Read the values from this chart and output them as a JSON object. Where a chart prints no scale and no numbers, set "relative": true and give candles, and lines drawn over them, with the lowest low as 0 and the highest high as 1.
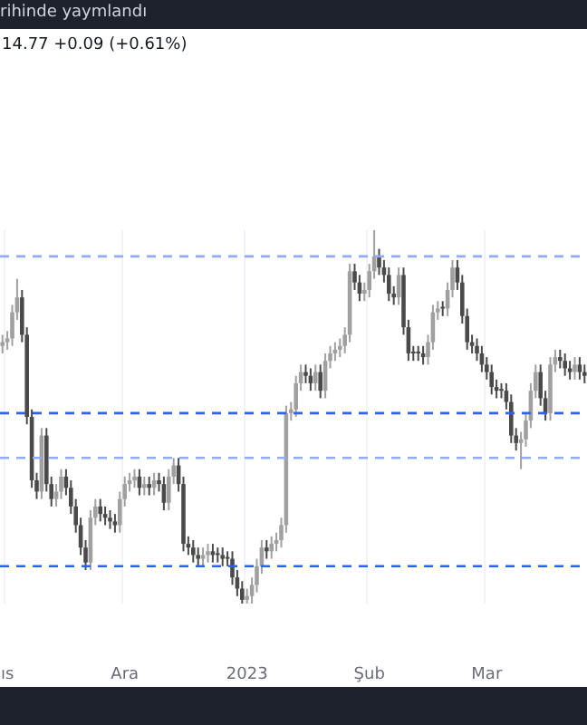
{
  "chart_data": {
    "type": "candlestick",
    "title": "rihinde yaymlandı",
    "subtitle": "14.77  +0.09 (+0.61%)",
    "relative": true,
    "grid": "x",
    "legend": false,
    "colors": [
      "#a0a0a0",
      "#a0a0a0",
      "#a0a0a0",
      "#a0a0a0",
      "#4a4a4a",
      "#4a4a4a",
      "#4a4a4a",
      "#4a4a4a",
      "#a0a0a0",
      "#4a4a4a",
      "#4a4a4a",
      "#a0a0a0",
      "#a0a0a0",
      "#4a4a4a",
      "#4a4a4a",
      "#4a4a4a",
      "#4a4a4a",
      "#4a4a4a",
      "#a0a0a0",
      "#a0a0a0",
      "#4a4a4a",
      "#4a4a4a",
      "#4a4a4a",
      "#4a4a4a",
      "#a0a0a0",
      "#a0a0a0",
      "#a0a0a0",
      "#a0a0a0",
      "#4a4a4a",
      "#a0a0a0",
      "#4a4a4a",
      "#a0a0a0",
      "#4a4a4a",
      "#4a4a4a",
      "#a0a0a0",
      "#a0a0a0",
      "#4a4a4a",
      "#4a4a4a",
      "#4a4a4a",
      "#4a4a4a",
      "#4a4a4a",
      "#a0a0a0",
      "#a0a0a0",
      "#4a4a4a",
      "#4a4a4a",
      "#4a4a4a",
      "#4a4a4a",
      "#4a4a4a",
      "#4a4a4a",
      "#4a4a4a",
      "#a0a0a0",
      "#a0a0a0",
      "#a0a0a0",
      "#a0a0a0",
      "#4a4a4a",
      "#a0a0a0",
      "#a0a0a0",
      "#a0a0a0",
      "#a0a0a0",
      "#a0a0a0",
      "#a0a0a0",
      "#a0a0a0",
      "#4a4a4a",
      "#4a4a4a",
      "#a0a0a0",
      "#4a4a4a",
      "#a0a0a0",
      "#a0a0a0",
      "#a0a0a0",
      "#a0a0a0",
      "#a0a0a0",
      "#a0a0a0",
      "#4a4a4a",
      "#4a4a4a",
      "#a0a0a0",
      "#a0a0a0",
      "#a0a0a0",
      "#4a4a4a",
      "#4a4a4a",
      "#4a4a4a",
      "#4a4a4a",
      "#a0a0a0",
      "#4a4a4a",
      "#4a4a4a",
      "#4a4a4a",
      "#4a4a4a",
      "#4a4a4a",
      "#a0a0a0",
      "#a0a0a0",
      "#a0a0a0",
      "#4a4a4a",
      "#a0a0a0",
      "#a0a0a0",
      "#4a4a4a",
      "#4a4a4a",
      "#4a4a4a",
      "#4a4a4a",
      "#4a4a4a",
      "#4a4a4a",
      "#4a4a4a",
      "#4a4a4a",
      "#4a4a4a",
      "#4a4a4a",
      "#4a4a4a",
      "#4a4a4a",
      "#4a4a4a",
      "#a0a0a0",
      "#a0a0a0",
      "#a0a0a0",
      "#a0a0a0",
      "#4a4a4a",
      "#4a4a4a",
      "#a0a0a0",
      "#a0a0a0",
      "#4a4a4a",
      "#4a4a4a",
      "#4a4a4a",
      "#a0a0a0",
      "#4a4a4a",
      "#4a4a4a"
    ],
    "categories": [
      null,
      "ıs",
      null,
      null,
      null,
      null,
      null,
      null,
      null,
      null,
      null,
      null,
      null,
      null,
      null,
      null,
      null,
      null,
      null,
      null,
      null,
      null,
      null,
      null,
      null,
      "Ara",
      null,
      null,
      null,
      null,
      null,
      null,
      null,
      null,
      null,
      null,
      null,
      null,
      null,
      null,
      null,
      null,
      null,
      null,
      null,
      null,
      null,
      null,
      null,
      null,
      "2023",
      null,
      null,
      null,
      null,
      null,
      null,
      null,
      null,
      null,
      null,
      null,
      null,
      null,
      null,
      null,
      null,
      null,
      null,
      null,
      null,
      null,
      null,
      null,
      null,
      "Şub",
      null,
      null,
      null,
      null,
      null,
      null,
      null,
      null,
      null,
      null,
      null,
      null,
      null,
      null,
      null,
      null,
      null,
      null,
      null,
      null,
      null,
      null,
      null,
      "Mar",
      null,
      null,
      null,
      null,
      null,
      null,
      null,
      null,
      null,
      null,
      null,
      null,
      null,
      null,
      null,
      null,
      null,
      null,
      null,
      null
    ],
    "ohlc": [
      [
        0.69,
        0.72,
        0.67,
        0.7
      ],
      [
        0.7,
        0.73,
        0.68,
        0.71
      ],
      [
        0.71,
        0.8,
        0.69,
        0.78
      ],
      [
        0.78,
        0.87,
        0.76,
        0.82
      ],
      [
        0.82,
        0.84,
        0.7,
        0.72
      ],
      [
        0.72,
        0.74,
        0.48,
        0.5
      ],
      [
        0.5,
        0.52,
        0.31,
        0.33
      ],
      [
        0.33,
        0.35,
        0.28,
        0.3
      ],
      [
        0.3,
        0.47,
        0.28,
        0.45
      ],
      [
        0.45,
        0.47,
        0.3,
        0.32
      ],
      [
        0.32,
        0.34,
        0.26,
        0.28
      ],
      [
        0.28,
        0.32,
        0.26,
        0.3
      ],
      [
        0.3,
        0.36,
        0.28,
        0.34
      ],
      [
        0.34,
        0.36,
        0.29,
        0.31
      ],
      [
        0.31,
        0.33,
        0.24,
        0.26
      ],
      [
        0.26,
        0.28,
        0.19,
        0.21
      ],
      [
        0.21,
        0.23,
        0.13,
        0.15
      ],
      [
        0.15,
        0.17,
        0.09,
        0.11
      ],
      [
        0.11,
        0.25,
        0.09,
        0.23
      ],
      [
        0.23,
        0.28,
        0.21,
        0.26
      ],
      [
        0.26,
        0.28,
        0.22,
        0.24
      ],
      [
        0.24,
        0.26,
        0.21,
        0.23
      ],
      [
        0.23,
        0.25,
        0.2,
        0.22
      ],
      [
        0.22,
        0.24,
        0.19,
        0.21
      ],
      [
        0.21,
        0.3,
        0.19,
        0.28
      ],
      [
        0.28,
        0.34,
        0.26,
        0.32
      ],
      [
        0.32,
        0.35,
        0.3,
        0.33
      ],
      [
        0.33,
        0.36,
        0.31,
        0.34
      ],
      [
        0.34,
        0.36,
        0.29,
        0.31
      ],
      [
        0.31,
        0.34,
        0.29,
        0.32
      ],
      [
        0.32,
        0.34,
        0.29,
        0.31
      ],
      [
        0.31,
        0.35,
        0.29,
        0.33
      ],
      [
        0.33,
        0.35,
        0.3,
        0.32
      ],
      [
        0.32,
        0.34,
        0.25,
        0.27
      ],
      [
        0.27,
        0.36,
        0.25,
        0.34
      ],
      [
        0.34,
        0.39,
        0.32,
        0.37
      ],
      [
        0.37,
        0.39,
        0.3,
        0.32
      ],
      [
        0.32,
        0.34,
        0.14,
        0.16
      ],
      [
        0.16,
        0.18,
        0.13,
        0.15
      ],
      [
        0.15,
        0.17,
        0.11,
        0.13
      ],
      [
        0.13,
        0.15,
        0.1,
        0.12
      ],
      [
        0.12,
        0.15,
        0.1,
        0.13
      ],
      [
        0.13,
        0.16,
        0.11,
        0.14
      ],
      [
        0.14,
        0.16,
        0.11,
        0.13
      ],
      [
        0.13,
        0.15,
        0.11,
        0.13
      ],
      [
        0.13,
        0.15,
        0.1,
        0.12
      ],
      [
        0.12,
        0.14,
        0.1,
        0.12
      ],
      [
        0.12,
        0.14,
        0.05,
        0.07
      ],
      [
        0.07,
        0.09,
        0.02,
        0.04
      ],
      [
        0.04,
        0.06,
        0.0,
        0.01
      ],
      [
        0.01,
        0.04,
        0.0,
        0.02
      ],
      [
        0.02,
        0.07,
        0.0,
        0.05
      ],
      [
        0.05,
        0.12,
        0.03,
        0.1
      ],
      [
        0.1,
        0.17,
        0.08,
        0.15
      ],
      [
        0.15,
        0.17,
        0.12,
        0.14
      ],
      [
        0.14,
        0.18,
        0.12,
        0.16
      ],
      [
        0.16,
        0.19,
        0.14,
        0.17
      ],
      [
        0.17,
        0.23,
        0.15,
        0.21
      ],
      [
        0.21,
        0.53,
        0.19,
        0.51
      ],
      [
        0.51,
        0.54,
        0.49,
        0.52
      ],
      [
        0.52,
        0.61,
        0.5,
        0.59
      ],
      [
        0.59,
        0.64,
        0.57,
        0.62
      ],
      [
        0.62,
        0.64,
        0.59,
        0.61
      ],
      [
        0.61,
        0.63,
        0.57,
        0.59
      ],
      [
        0.59,
        0.64,
        0.57,
        0.62
      ],
      [
        0.62,
        0.64,
        0.55,
        0.57
      ],
      [
        0.57,
        0.67,
        0.55,
        0.65
      ],
      [
        0.65,
        0.69,
        0.63,
        0.67
      ],
      [
        0.67,
        0.7,
        0.65,
        0.68
      ],
      [
        0.68,
        0.71,
        0.66,
        0.69
      ],
      [
        0.69,
        0.74,
        0.67,
        0.72
      ],
      [
        0.72,
        0.91,
        0.7,
        0.89
      ],
      [
        0.89,
        0.91,
        0.84,
        0.86
      ],
      [
        0.86,
        0.88,
        0.81,
        0.83
      ],
      [
        0.83,
        0.86,
        0.81,
        0.84
      ],
      [
        0.84,
        0.91,
        0.82,
        0.89
      ],
      [
        0.89,
        1.0,
        0.87,
        0.93
      ],
      [
        0.93,
        0.95,
        0.88,
        0.9
      ],
      [
        0.9,
        0.92,
        0.86,
        0.88
      ],
      [
        0.88,
        0.9,
        0.81,
        0.83
      ],
      [
        0.83,
        0.85,
        0.8,
        0.82
      ],
      [
        0.82,
        0.9,
        0.8,
        0.88
      ],
      [
        0.88,
        0.9,
        0.72,
        0.74
      ],
      [
        0.74,
        0.76,
        0.65,
        0.67
      ],
      [
        0.67,
        0.69,
        0.65,
        0.67
      ],
      [
        0.67,
        0.69,
        0.65,
        0.67
      ],
      [
        0.67,
        0.69,
        0.64,
        0.66
      ],
      [
        0.66,
        0.72,
        0.64,
        0.7
      ],
      [
        0.7,
        0.8,
        0.68,
        0.78
      ],
      [
        0.78,
        0.81,
        0.76,
        0.79
      ],
      [
        0.79,
        0.81,
        0.77,
        0.79
      ],
      [
        0.79,
        0.86,
        0.77,
        0.84
      ],
      [
        0.84,
        0.92,
        0.82,
        0.9
      ],
      [
        0.9,
        0.92,
        0.84,
        0.86
      ],
      [
        0.86,
        0.88,
        0.75,
        0.77
      ],
      [
        0.77,
        0.79,
        0.68,
        0.7
      ],
      [
        0.7,
        0.72,
        0.67,
        0.69
      ],
      [
        0.69,
        0.71,
        0.65,
        0.67
      ],
      [
        0.67,
        0.69,
        0.62,
        0.64
      ],
      [
        0.64,
        0.66,
        0.6,
        0.62
      ],
      [
        0.62,
        0.64,
        0.56,
        0.58
      ],
      [
        0.58,
        0.6,
        0.55,
        0.57
      ],
      [
        0.57,
        0.59,
        0.55,
        0.57
      ],
      [
        0.57,
        0.59,
        0.52,
        0.54
      ],
      [
        0.54,
        0.56,
        0.43,
        0.45
      ],
      [
        0.45,
        0.47,
        0.41,
        0.43
      ],
      [
        0.43,
        0.46,
        0.36,
        0.44
      ],
      [
        0.44,
        0.51,
        0.42,
        0.49
      ],
      [
        0.49,
        0.59,
        0.47,
        0.57
      ],
      [
        0.57,
        0.64,
        0.55,
        0.62
      ],
      [
        0.62,
        0.64,
        0.53,
        0.55
      ],
      [
        0.55,
        0.57,
        0.49,
        0.51
      ],
      [
        0.51,
        0.66,
        0.49,
        0.64
      ],
      [
        0.64,
        0.68,
        0.62,
        0.66
      ],
      [
        0.66,
        0.68,
        0.63,
        0.65
      ],
      [
        0.65,
        0.67,
        0.61,
        0.63
      ],
      [
        0.63,
        0.65,
        0.6,
        0.62
      ],
      [
        0.62,
        0.66,
        0.6,
        0.64
      ],
      [
        0.64,
        0.66,
        0.6,
        0.62
      ],
      [
        0.62,
        0.64,
        0.59,
        0.61
      ]
    ],
    "ref_lines": [
      {
        "axis": "y",
        "value": 0.93,
        "color": "#90acf8",
        "line_style": "dashed"
      },
      {
        "axis": "y",
        "value": 0.51,
        "color": "#2962ff",
        "line_style": "dashed"
      },
      {
        "axis": "y",
        "value": 0.39,
        "color": "#90acf8",
        "line_style": "dashed"
      },
      {
        "axis": "y",
        "value": 0.1,
        "color": "#2962ff",
        "line_style": "dashed"
      }
    ]
  }
}
